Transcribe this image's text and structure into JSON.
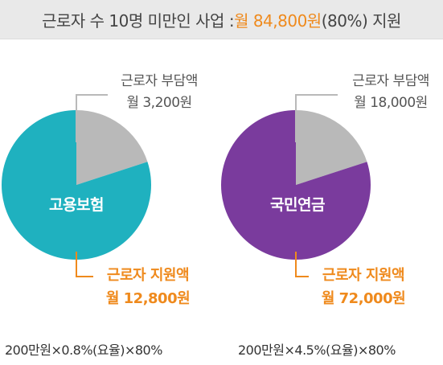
{
  "banner": {
    "prefix": "근로자 수 10명 미만인 사업 : ",
    "highlight": "월 84,800원",
    "suffix": "(80%) 지원"
  },
  "colors": {
    "teal": "#1fb1bf",
    "purple": "#7a3b9d",
    "gray": "#b9b9b9",
    "orange": "#ef8a1d"
  },
  "chart_data": [
    {
      "type": "pie",
      "title": "고용보험",
      "slices": [
        {
          "label": "근로자 부담액",
          "value": 3200,
          "value_text": "월 3,200원",
          "color": "#b9b9b9"
        },
        {
          "label": "근로자 지원액",
          "value": 12800,
          "value_text": "월 12,800원",
          "color": "#1fb1bf"
        }
      ],
      "formula": "200만원×0.8%(요율)×80%"
    },
    {
      "type": "pie",
      "title": "국민연금",
      "slices": [
        {
          "label": "근로자 부담액",
          "value": 18000,
          "value_text": "월 18,000원",
          "color": "#b9b9b9"
        },
        {
          "label": "근로자 지원액",
          "value": 72000,
          "value_text": "월 72,000원",
          "color": "#7a3b9d"
        }
      ],
      "formula": "200만원×4.5%(요율)×80%"
    }
  ]
}
